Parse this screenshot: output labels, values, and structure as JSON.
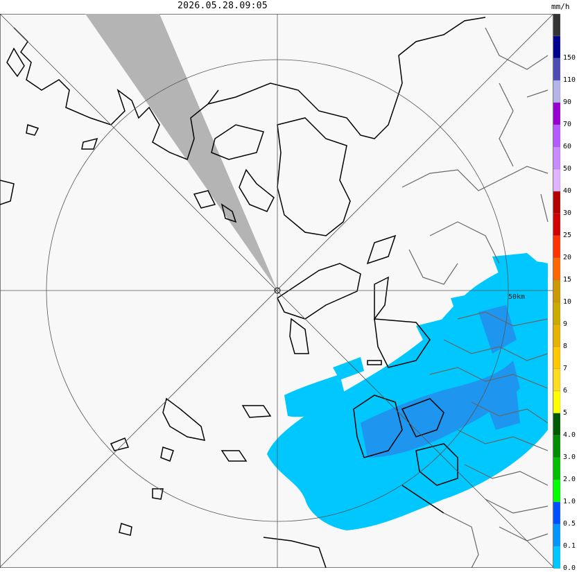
{
  "header": {
    "timestamp": "2026.05.28.09:05",
    "unit": "mm/h"
  },
  "map": {
    "range_ring_label": "50km",
    "background_color": "#f8f8f8",
    "blocked_sector_color": "#b4b4b4",
    "rain_light_color": "#00c8ff",
    "rain_medium_color": "#1e96f0"
  },
  "legend": {
    "bands": [
      {
        "label": "",
        "color": "#333333"
      },
      {
        "label": "150",
        "color": "#000090"
      },
      {
        "label": "110",
        "color": "#4c4cb4"
      },
      {
        "label": "90",
        "color": "#b4b4e6"
      },
      {
        "label": "70",
        "color": "#9600d2"
      },
      {
        "label": "60",
        "color": "#b45aff"
      },
      {
        "label": "50",
        "color": "#c88cff"
      },
      {
        "label": "40",
        "color": "#e1b4ff"
      },
      {
        "label": "30",
        "color": "#b40000"
      },
      {
        "label": "25",
        "color": "#d20000"
      },
      {
        "label": "20",
        "color": "#ff3200"
      },
      {
        "label": "15",
        "color": "#ff6600"
      },
      {
        "label": "10",
        "color": "#cc9900"
      },
      {
        "label": "9",
        "color": "#ccaa00"
      },
      {
        "label": "8",
        "color": "#e6b400"
      },
      {
        "label": "7",
        "color": "#ffc800"
      },
      {
        "label": "6",
        "color": "#ffdc1f"
      },
      {
        "label": "5",
        "color": "#ffff00"
      },
      {
        "label": "4.0",
        "color": "#005a00"
      },
      {
        "label": "3.0",
        "color": "#008c00"
      },
      {
        "label": "2.0",
        "color": "#00be00"
      },
      {
        "label": "1.0",
        "color": "#00ff00"
      },
      {
        "label": "0.5",
        "color": "#0050ff"
      },
      {
        "label": "0.1",
        "color": "#0096ff"
      },
      {
        "label": "0.0",
        "color": "#00c8ff"
      },
      {
        "label": "",
        "color": "#ffffff"
      }
    ]
  }
}
